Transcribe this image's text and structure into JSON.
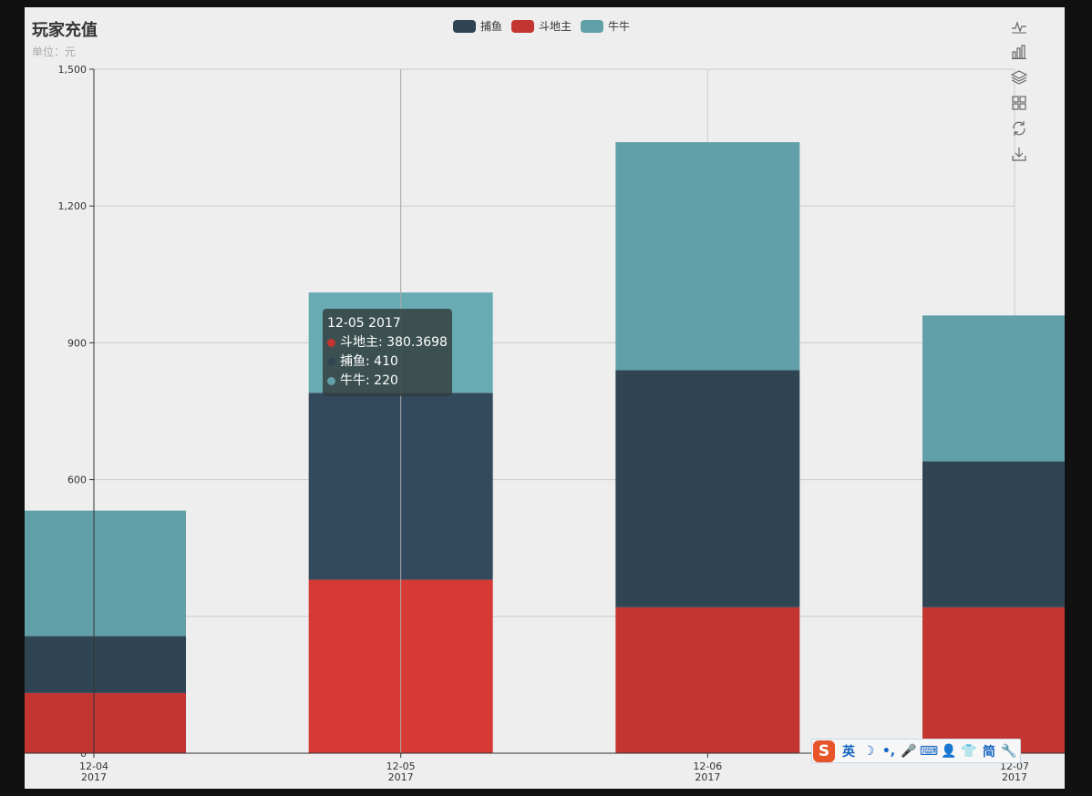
{
  "title": "玩家充值",
  "subtitle": "单位：元",
  "legend": [
    {
      "name": "捕鱼",
      "color": "#2f4554"
    },
    {
      "name": "斗地主",
      "color": "#c23531"
    },
    {
      "name": "牛牛",
      "color": "#61a0a8"
    }
  ],
  "toolbox": [
    "line-chart-icon",
    "bar-chart-icon",
    "stack-icon",
    "tiled-icon",
    "restore-icon",
    "download-icon"
  ],
  "chart_data": {
    "type": "bar",
    "stacked": true,
    "categories": [
      "12-04\n2017",
      "12-05\n2017",
      "12-06\n2017",
      "12-07\n2017"
    ],
    "series": [
      {
        "name": "斗地主",
        "color": "#c23531",
        "values": [
          132,
          380.3698,
          320,
          320
        ]
      },
      {
        "name": "捕鱼",
        "color": "#2f4554",
        "values": [
          125,
          410,
          520,
          320
        ]
      },
      {
        "name": "牛牛",
        "color": "#61a0a8",
        "values": [
          275,
          220,
          500,
          320
        ]
      }
    ],
    "ylim": [
      0,
      1500
    ],
    "yticks": [
      0,
      300,
      600,
      900,
      1200,
      1500
    ],
    "ytick_labels": [
      "0",
      "",
      "600",
      "900",
      "1,200",
      "1,500"
    ],
    "grid": true
  },
  "tooltip": {
    "header": "12-05 2017",
    "rows": [
      {
        "label": "斗地主: 380.3698",
        "color": "#c23531"
      },
      {
        "label": "捕鱼: 410",
        "color": "#2f4554"
      },
      {
        "label": "牛牛: 220",
        "color": "#61a0a8"
      }
    ]
  },
  "ime": {
    "logo": "S",
    "items": [
      {
        "icon": "english-mode-icon",
        "text": "英"
      },
      {
        "icon": "moon-icon",
        "text": "☽"
      },
      {
        "icon": "punctuation-icon",
        "text": "•,"
      },
      {
        "icon": "microphone-icon",
        "text": "🎤"
      },
      {
        "icon": "keyboard-icon",
        "text": "⌨"
      },
      {
        "icon": "user-icon",
        "text": "👤"
      },
      {
        "icon": "skin-icon",
        "text": "👕"
      },
      {
        "icon": "simplified-icon",
        "text": "简"
      },
      {
        "icon": "wrench-icon",
        "text": "🔧"
      }
    ]
  }
}
